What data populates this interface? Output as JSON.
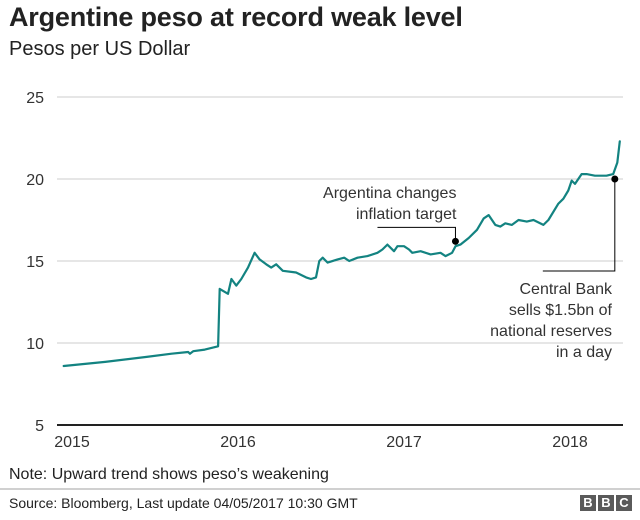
{
  "header": {
    "title": "Argentine peso at record weak level",
    "subtitle": "Pesos per US Dollar"
  },
  "footer": {
    "note": "Note: Upward trend shows peso’s weakening",
    "source": "Source: Bloomberg, Last update 04/05/2017 10:30 GMT",
    "logo_letters": [
      "B",
      "B",
      "C"
    ]
  },
  "colors": {
    "series": "#138381",
    "grid": "#cccccc",
    "axis": "#222222",
    "annotation": "#000000"
  },
  "chart_data": {
    "type": "line",
    "title": "Argentine peso at record weak level",
    "subtitle": "Pesos per US Dollar",
    "xlabel": "",
    "ylabel": "Pesos per US Dollar",
    "ylim": [
      5,
      25
    ],
    "xlim": [
      2014.95,
      2018.34
    ],
    "yticks": [
      5,
      10,
      15,
      20,
      25
    ],
    "xticks": [
      2015,
      2016,
      2017,
      2018
    ],
    "xtick_labels": [
      "2015",
      "2016",
      "2017",
      "2018"
    ],
    "grid": true,
    "legend": "none",
    "series": [
      {
        "name": "Pesos per US Dollar",
        "x": [
          2014.95,
          2015.2,
          2015.45,
          2015.6,
          2015.7,
          2015.71,
          2015.73,
          2015.8,
          2015.88,
          2015.89,
          2015.94,
          2015.96,
          2015.99,
          2016.02,
          2016.06,
          2016.1,
          2016.13,
          2016.17,
          2016.2,
          2016.23,
          2016.27,
          2016.35,
          2016.41,
          2016.44,
          2016.47,
          2016.49,
          2016.51,
          2016.54,
          2016.6,
          2016.64,
          2016.67,
          2016.72,
          2016.78,
          2016.84,
          2016.87,
          2016.9,
          2016.94,
          2016.96,
          2017.0,
          2017.03,
          2017.05,
          2017.1,
          2017.16,
          2017.22,
          2017.25,
          2017.29,
          2017.31,
          2017.34,
          2017.39,
          2017.44,
          2017.48,
          2017.51,
          2017.55,
          2017.58,
          2017.61,
          2017.65,
          2017.69,
          2017.74,
          2017.78,
          2017.84,
          2017.87,
          2017.93,
          2017.96,
          2017.99,
          2018.01,
          2018.03,
          2018.07,
          2018.1,
          2018.15,
          2018.22,
          2018.26,
          2018.285,
          2018.3
        ],
        "values": [
          8.6,
          8.85,
          9.15,
          9.35,
          9.45,
          9.35,
          9.5,
          9.6,
          9.8,
          13.3,
          13.0,
          13.9,
          13.5,
          13.9,
          14.6,
          15.5,
          15.1,
          14.8,
          14.6,
          14.8,
          14.4,
          14.3,
          14.0,
          13.9,
          14.0,
          15.0,
          15.2,
          14.9,
          15.1,
          15.2,
          15.0,
          15.2,
          15.3,
          15.5,
          15.7,
          16.0,
          15.6,
          15.9,
          15.9,
          15.7,
          15.5,
          15.6,
          15.4,
          15.5,
          15.3,
          15.5,
          15.9,
          16.0,
          16.4,
          16.9,
          17.6,
          17.8,
          17.2,
          17.1,
          17.3,
          17.2,
          17.5,
          17.4,
          17.5,
          17.2,
          17.5,
          18.5,
          18.8,
          19.3,
          19.9,
          19.7,
          20.3,
          20.3,
          20.2,
          20.2,
          20.3,
          21.0,
          22.3
        ]
      }
    ],
    "annotations": [
      {
        "text_lines": [
          "Argentina changes",
          "inflation target"
        ],
        "point": {
          "x": 2017.31,
          "y": 16.2
        }
      },
      {
        "text_lines": [
          "Central Bank",
          "sells $1.5bn of",
          "national reserves",
          "in a day"
        ],
        "point": {
          "x": 2018.27,
          "y": 20.0
        }
      }
    ]
  }
}
